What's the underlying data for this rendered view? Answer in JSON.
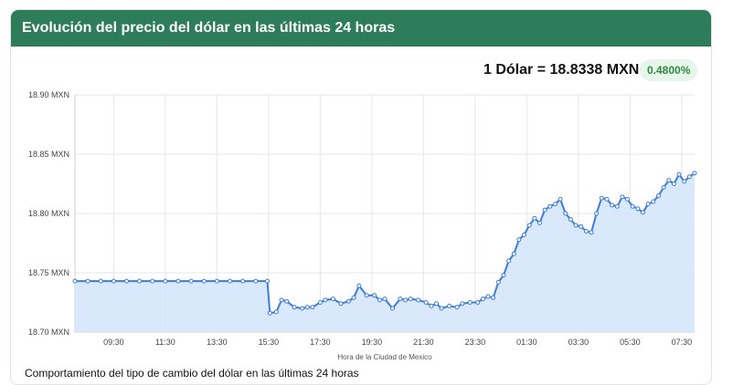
{
  "header": {
    "title": "Evolución del precio del dólar en las últimas 24 horas"
  },
  "rate": {
    "text": "1 Dólar = 18.8338 MXN",
    "change": "0.4800%"
  },
  "caption": "Comportamiento del tipo de cambio del dólar en las últimas 24 horas",
  "colors": {
    "header_bg": "#2e7d5a",
    "line": "#3b7ddd",
    "fill": "#d6e6fb",
    "badge_bg": "#e6f6ea",
    "badge_text": "#2f8a3f"
  },
  "chart_data": {
    "type": "area",
    "xlabel": "Hora de la Ciudad de Mexico",
    "ylabel": "",
    "ylim": [
      18.7,
      18.9
    ],
    "xlim": [
      0,
      24
    ],
    "x_ticks": [
      {
        "x": 1.5,
        "label": "09:30"
      },
      {
        "x": 3.5,
        "label": "11:30"
      },
      {
        "x": 5.5,
        "label": "13:30"
      },
      {
        "x": 7.5,
        "label": "15:30"
      },
      {
        "x": 9.5,
        "label": "17:30"
      },
      {
        "x": 11.5,
        "label": "19:30"
      },
      {
        "x": 13.5,
        "label": "21:30"
      },
      {
        "x": 15.5,
        "label": "23:30"
      },
      {
        "x": 17.5,
        "label": "01:30"
      },
      {
        "x": 19.5,
        "label": "03:30"
      },
      {
        "x": 21.5,
        "label": "05:30"
      },
      {
        "x": 23.5,
        "label": "07:30"
      }
    ],
    "y_ticks": [
      {
        "y": 18.7,
        "label": "18.70 MXN"
      },
      {
        "y": 18.75,
        "label": "18.75 MXN"
      },
      {
        "y": 18.8,
        "label": "18.80 MXN"
      },
      {
        "y": 18.85,
        "label": "18.85 MXN"
      },
      {
        "y": 18.9,
        "label": "18.90 MXN"
      }
    ],
    "grid": true,
    "series": [
      {
        "x": [
          0,
          0.5,
          1,
          1.5,
          2,
          2.5,
          3,
          3.5,
          4,
          4.5,
          5,
          5.5,
          6,
          6.5,
          7,
          7.45,
          7.55,
          7.8,
          8.0,
          8.2,
          8.5,
          8.8,
          9.0,
          9.2,
          9.5,
          9.7,
          10.0,
          10.3,
          10.6,
          10.8,
          11.0,
          11.3,
          11.6,
          11.8,
          12.0,
          12.3,
          12.6,
          12.8,
          13.0,
          13.3,
          13.6,
          13.8,
          14.0,
          14.2,
          14.5,
          14.8,
          15.0,
          15.3,
          15.6,
          15.8,
          16.0,
          16.2,
          16.4,
          16.6,
          16.8,
          17.0,
          17.2,
          17.4,
          17.6,
          17.8,
          18.0,
          18.2,
          18.4,
          18.6,
          18.8,
          19.0,
          19.2,
          19.4,
          19.6,
          19.8,
          20.0,
          20.2,
          20.4,
          20.6,
          20.8,
          21.0,
          21.2,
          21.4,
          21.6,
          21.8,
          22.0,
          22.2,
          22.4,
          22.6,
          22.8,
          23.0,
          23.2,
          23.4,
          23.6,
          23.8,
          24.0
        ],
        "y": [
          18.743,
          18.743,
          18.743,
          18.743,
          18.743,
          18.743,
          18.743,
          18.743,
          18.743,
          18.743,
          18.743,
          18.743,
          18.743,
          18.743,
          18.743,
          18.743,
          18.716,
          18.717,
          18.727,
          18.726,
          18.721,
          18.72,
          18.721,
          18.721,
          18.725,
          18.727,
          18.728,
          18.724,
          18.726,
          18.729,
          18.739,
          18.731,
          18.731,
          18.727,
          18.728,
          18.72,
          18.728,
          18.727,
          18.728,
          18.727,
          18.725,
          18.722,
          18.724,
          18.72,
          18.722,
          18.721,
          18.724,
          18.725,
          18.725,
          18.728,
          18.73,
          18.729,
          18.742,
          18.748,
          18.76,
          18.766,
          18.778,
          18.782,
          18.79,
          18.796,
          18.792,
          18.803,
          18.806,
          18.808,
          18.812,
          18.8,
          18.795,
          18.79,
          18.789,
          18.785,
          18.784,
          18.8,
          18.813,
          18.812,
          18.807,
          18.806,
          18.814,
          18.812,
          18.806,
          18.804,
          18.801,
          18.808,
          18.81,
          18.815,
          18.822,
          18.828,
          18.825,
          18.833,
          18.827,
          18.831,
          18.834
        ]
      }
    ]
  }
}
